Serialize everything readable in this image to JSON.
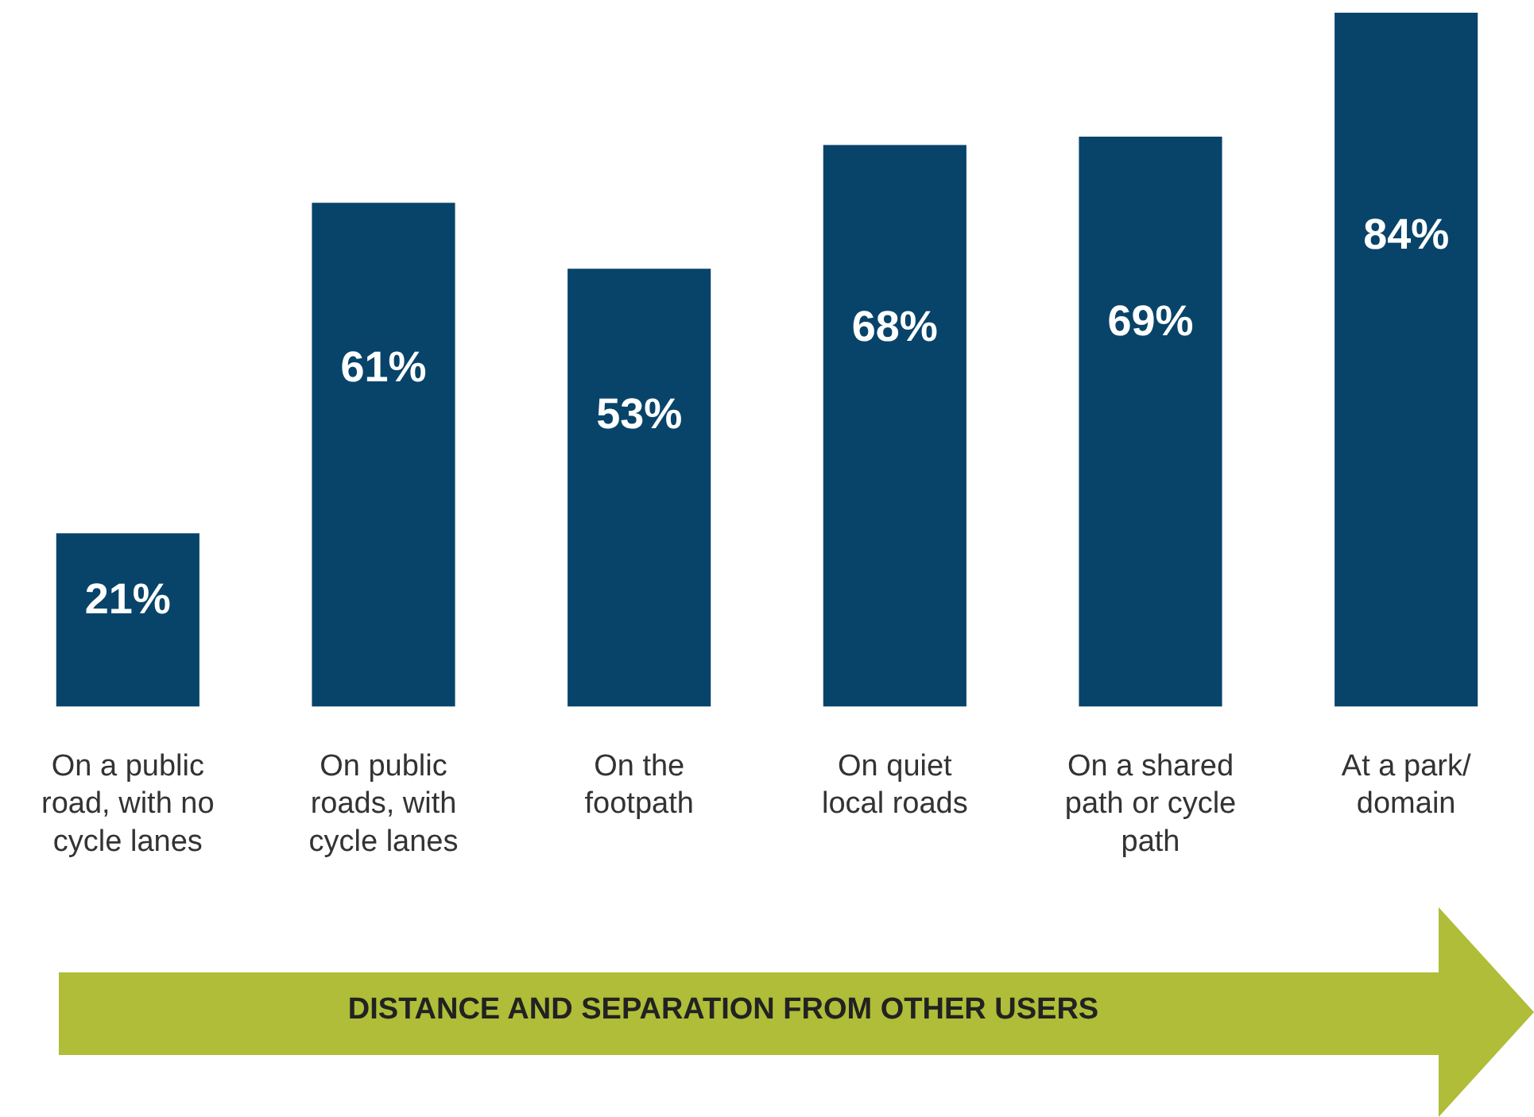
{
  "chart_data": {
    "type": "bar",
    "categories": [
      "On a public road, with no cycle lanes",
      "On public roads, with cycle lanes",
      "On the footpath",
      "On quiet local roads",
      "On a shared path or cycle path",
      "At a park/ domain"
    ],
    "values": [
      21,
      61,
      53,
      68,
      69,
      84
    ],
    "value_labels": [
      "21%",
      "61%",
      "53%",
      "68%",
      "69%",
      "84%"
    ],
    "color": "#08446a",
    "grid": false,
    "legend": false,
    "annotations": [
      "DISTANCE AND SEPARATION FROM OTHER USERS"
    ]
  }
}
